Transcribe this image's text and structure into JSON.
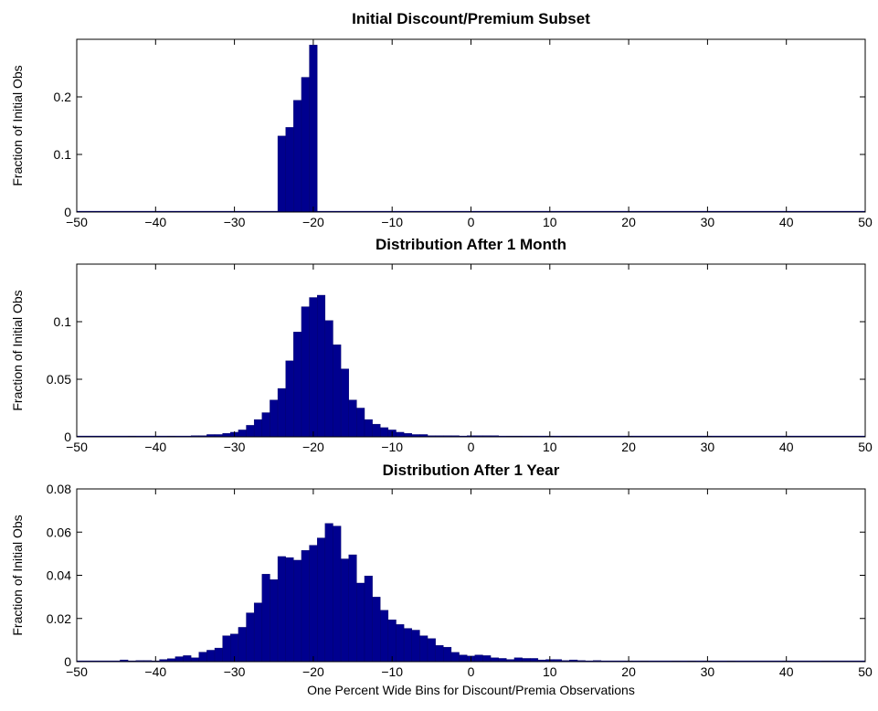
{
  "chart_data": [
    {
      "type": "bar",
      "title": "Initial Discount/Premium Subset",
      "ylabel": "Fraction of Initial Obs",
      "xlabel": "",
      "xlim": [
        -50,
        50
      ],
      "ylim": [
        0,
        0.3
      ],
      "xticks": [
        "−50",
        "−40",
        "−30",
        "−20",
        "−10",
        "0",
        "10",
        "20",
        "30",
        "40",
        "50"
      ],
      "yticks": [
        {
          "value": 0,
          "label": "0"
        },
        {
          "value": 0.1,
          "label": "0.1"
        },
        {
          "value": 0.2,
          "label": "0.2"
        }
      ],
      "bars": [
        {
          "x": -24,
          "y": 0.132
        },
        {
          "x": -23,
          "y": 0.147
        },
        {
          "x": -22,
          "y": 0.194
        },
        {
          "x": -21,
          "y": 0.234
        },
        {
          "x": -20,
          "y": 0.29
        }
      ]
    },
    {
      "type": "bar",
      "title": "Distribution After 1 Month",
      "ylabel": "Fraction of Initial Obs",
      "xlabel": "",
      "xlim": [
        -50,
        50
      ],
      "ylim": [
        0,
        0.15
      ],
      "xticks": [
        "−50",
        "−40",
        "−30",
        "−20",
        "−10",
        "0",
        "10",
        "20",
        "30",
        "40",
        "50"
      ],
      "yticks": [
        {
          "value": 0,
          "label": "0"
        },
        {
          "value": 0.05,
          "label": "0.05"
        },
        {
          "value": 0.1,
          "label": "0.1"
        }
      ],
      "bars": [
        {
          "x": -43,
          "y": 0.0005
        },
        {
          "x": -38,
          "y": 0.0005
        },
        {
          "x": -35,
          "y": 0.001
        },
        {
          "x": -34,
          "y": 0.001
        },
        {
          "x": -33,
          "y": 0.002
        },
        {
          "x": -32,
          "y": 0.002
        },
        {
          "x": -31,
          "y": 0.003
        },
        {
          "x": -30,
          "y": 0.004
        },
        {
          "x": -29,
          "y": 0.006
        },
        {
          "x": -28,
          "y": 0.01
        },
        {
          "x": -27,
          "y": 0.015
        },
        {
          "x": -26,
          "y": 0.021
        },
        {
          "x": -25,
          "y": 0.032
        },
        {
          "x": -24,
          "y": 0.042
        },
        {
          "x": -23,
          "y": 0.066
        },
        {
          "x": -22,
          "y": 0.091
        },
        {
          "x": -21,
          "y": 0.113
        },
        {
          "x": -20,
          "y": 0.121
        },
        {
          "x": -19,
          "y": 0.123
        },
        {
          "x": -18,
          "y": 0.101
        },
        {
          "x": -17,
          "y": 0.08
        },
        {
          "x": -16,
          "y": 0.059
        },
        {
          "x": -15,
          "y": 0.032
        },
        {
          "x": -14,
          "y": 0.025
        },
        {
          "x": -13,
          "y": 0.015
        },
        {
          "x": -12,
          "y": 0.011
        },
        {
          "x": -11,
          "y": 0.008
        },
        {
          "x": -10,
          "y": 0.006
        },
        {
          "x": -9,
          "y": 0.004
        },
        {
          "x": -8,
          "y": 0.003
        },
        {
          "x": -7,
          "y": 0.002
        },
        {
          "x": -6,
          "y": 0.002
        },
        {
          "x": -5,
          "y": 0.001
        },
        {
          "x": -4,
          "y": 0.001
        },
        {
          "x": -3,
          "y": 0.001
        },
        {
          "x": -2,
          "y": 0.001
        },
        {
          "x": 0,
          "y": 0.001
        },
        {
          "x": 1,
          "y": 0.001
        },
        {
          "x": 2,
          "y": 0.001
        },
        {
          "x": 3,
          "y": 0.001
        },
        {
          "x": 5,
          "y": 0.0005
        },
        {
          "x": 6,
          "y": 0.0005
        },
        {
          "x": 8,
          "y": 0.0005
        },
        {
          "x": 10,
          "y": 0.0005
        },
        {
          "x": 12,
          "y": 0.0005
        },
        {
          "x": 13,
          "y": 0.0005
        },
        {
          "x": 20,
          "y": 0.0005
        },
        {
          "x": 30,
          "y": 0.0005
        },
        {
          "x": 40,
          "y": 0.0005
        }
      ]
    },
    {
      "type": "bar",
      "title": "Distribution After 1 Year",
      "ylabel": "Fraction of Initial Obs",
      "xlabel": "One Percent Wide Bins for Discount/Premia Observations",
      "xlim": [
        -50,
        50
      ],
      "ylim": [
        0,
        0.08
      ],
      "xticks": [
        "−50",
        "−40",
        "−30",
        "−20",
        "−10",
        "0",
        "10",
        "20",
        "30",
        "40",
        "50"
      ],
      "yticks": [
        {
          "value": 0,
          "label": "0"
        },
        {
          "value": 0.02,
          "label": "0.02"
        },
        {
          "value": 0.04,
          "label": "0.04"
        },
        {
          "value": 0.06,
          "label": "0.06"
        },
        {
          "value": 0.08,
          "label": "0.08"
        }
      ],
      "bars": [
        {
          "x": -44,
          "y": 0.0008
        },
        {
          "x": -43,
          "y": 0.0003
        },
        {
          "x": -42,
          "y": 0.0005
        },
        {
          "x": -41,
          "y": 0.0005
        },
        {
          "x": -40,
          "y": 0.0003
        },
        {
          "x": -39,
          "y": 0.001
        },
        {
          "x": -38,
          "y": 0.0014
        },
        {
          "x": -37,
          "y": 0.0023
        },
        {
          "x": -36,
          "y": 0.0028
        },
        {
          "x": -35,
          "y": 0.0018
        },
        {
          "x": -34,
          "y": 0.0044
        },
        {
          "x": -33,
          "y": 0.0053
        },
        {
          "x": -32,
          "y": 0.0063
        },
        {
          "x": -31,
          "y": 0.012
        },
        {
          "x": -30,
          "y": 0.0128
        },
        {
          "x": -29,
          "y": 0.0159
        },
        {
          "x": -28,
          "y": 0.0226
        },
        {
          "x": -27,
          "y": 0.0272
        },
        {
          "x": -26,
          "y": 0.0405
        },
        {
          "x": -25,
          "y": 0.038
        },
        {
          "x": -24,
          "y": 0.0487
        },
        {
          "x": -23,
          "y": 0.0482
        },
        {
          "x": -22,
          "y": 0.047
        },
        {
          "x": -21,
          "y": 0.0515
        },
        {
          "x": -20,
          "y": 0.0539
        },
        {
          "x": -19,
          "y": 0.0573
        },
        {
          "x": -18,
          "y": 0.064
        },
        {
          "x": -17,
          "y": 0.0628
        },
        {
          "x": -16,
          "y": 0.0476
        },
        {
          "x": -15,
          "y": 0.0495
        },
        {
          "x": -14,
          "y": 0.0364
        },
        {
          "x": -13,
          "y": 0.0397
        },
        {
          "x": -12,
          "y": 0.0299
        },
        {
          "x": -11,
          "y": 0.0238
        },
        {
          "x": -10,
          "y": 0.0194
        },
        {
          "x": -9,
          "y": 0.0172
        },
        {
          "x": -8,
          "y": 0.0154
        },
        {
          "x": -7,
          "y": 0.0146
        },
        {
          "x": -6,
          "y": 0.012
        },
        {
          "x": -5,
          "y": 0.0107
        },
        {
          "x": -4,
          "y": 0.0075
        },
        {
          "x": -3,
          "y": 0.0067
        },
        {
          "x": -2,
          "y": 0.0043
        },
        {
          "x": -1,
          "y": 0.0031
        },
        {
          "x": 0,
          "y": 0.0026
        },
        {
          "x": 1,
          "y": 0.0031
        },
        {
          "x": 2,
          "y": 0.0028
        },
        {
          "x": 3,
          "y": 0.0018
        },
        {
          "x": 4,
          "y": 0.0015
        },
        {
          "x": 5,
          "y": 0.001
        },
        {
          "x": 6,
          "y": 0.0018
        },
        {
          "x": 7,
          "y": 0.0015
        },
        {
          "x": 8,
          "y": 0.0015
        },
        {
          "x": 9,
          "y": 0.0008
        },
        {
          "x": 10,
          "y": 0.001
        },
        {
          "x": 11,
          "y": 0.001
        },
        {
          "x": 12,
          "y": 0.0005
        },
        {
          "x": 13,
          "y": 0.0008
        },
        {
          "x": 14,
          "y": 0.0005
        },
        {
          "x": 16,
          "y": 0.0005
        },
        {
          "x": 20,
          "y": 0.0003
        },
        {
          "x": 22,
          "y": 0.0003
        },
        {
          "x": 26,
          "y": 0.0003
        },
        {
          "x": 28,
          "y": 0.0003
        },
        {
          "x": 30,
          "y": 0.0003
        },
        {
          "x": 33,
          "y": 0.0003
        },
        {
          "x": 40,
          "y": 0.0003
        },
        {
          "x": 45,
          "y": 0.0003
        }
      ]
    }
  ]
}
